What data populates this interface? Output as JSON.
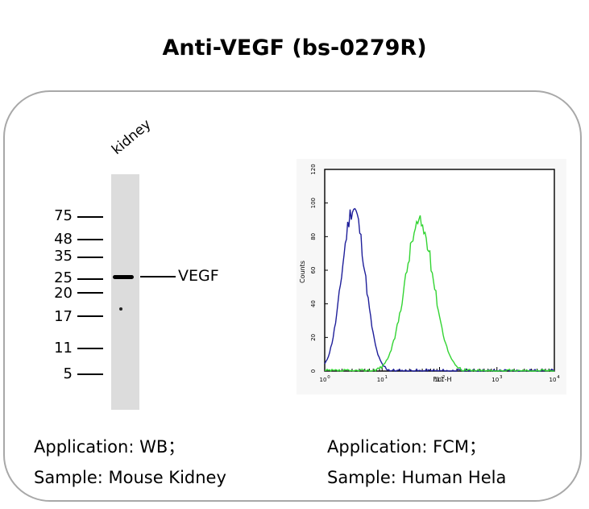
{
  "title": "Anti-VEGF (bs-0279R)",
  "wb": {
    "lane_label": "kidney",
    "markers": [
      "75",
      "48",
      "35",
      "25",
      "20",
      "17",
      "11",
      "5"
    ],
    "band_label": "VEGF"
  },
  "fcm": {
    "y_ticks": [
      "0",
      "20",
      "40",
      "60",
      "80",
      "100",
      "120"
    ],
    "ylabel": "Counts",
    "x_ticks": [
      "10",
      "10",
      "10",
      "10",
      "10"
    ],
    "x_exp": [
      "0",
      "1",
      "2",
      "3",
      "4"
    ],
    "xlabel": "FL1-H",
    "colors": {
      "control": "#1f1f9a",
      "sample": "#33d433"
    }
  },
  "left_caption": {
    "application": "Application: WB；",
    "sample": "Sample: Mouse Kidney"
  },
  "right_caption": {
    "application": "Application: FCM；",
    "sample": "Sample: Human Hela"
  }
}
